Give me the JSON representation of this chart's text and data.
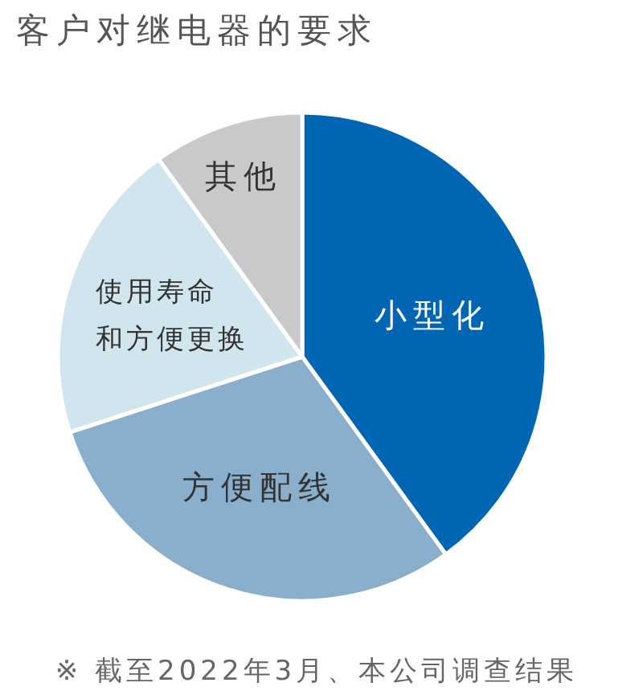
{
  "chart_data": {
    "type": "pie",
    "title": "客户对继电器的要求",
    "categories": [
      "小型化",
      "方便配线",
      "使用寿命和方便更换",
      "其他"
    ],
    "values": [
      40,
      30,
      20,
      10
    ],
    "colors": [
      "#0066b3",
      "#8aafcc",
      "#d1e5ee",
      "#c8c9cb"
    ],
    "annotations": [
      "※ 截至2022年3月、本公司调查结果"
    ]
  }
}
